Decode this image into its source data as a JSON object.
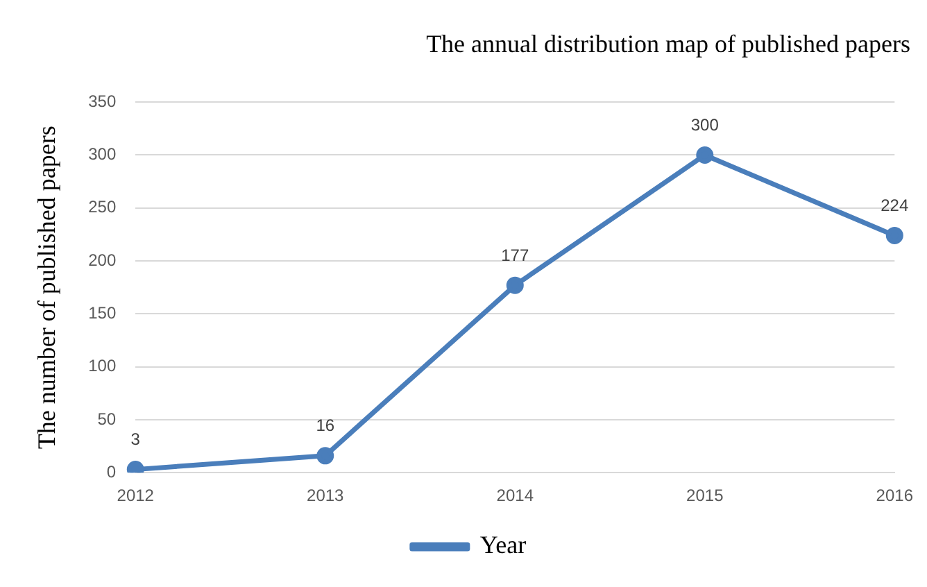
{
  "chart_data": {
    "type": "line",
    "title": "The annual distribution map of published papers",
    "ylabel": "The number of published papers",
    "categories": [
      "2012",
      "2013",
      "2014",
      "2015",
      "2016"
    ],
    "series": [
      {
        "name": "Year",
        "color": "#4a7ebb",
        "values": [
          3,
          16,
          177,
          300,
          224
        ]
      }
    ],
    "ylim": [
      0,
      350
    ],
    "yticks": [
      0,
      50,
      100,
      150,
      200,
      250,
      300,
      350
    ],
    "grid": "y",
    "legend": "bottom",
    "marker": "circle",
    "line_style": "solid",
    "data_labels": true
  }
}
